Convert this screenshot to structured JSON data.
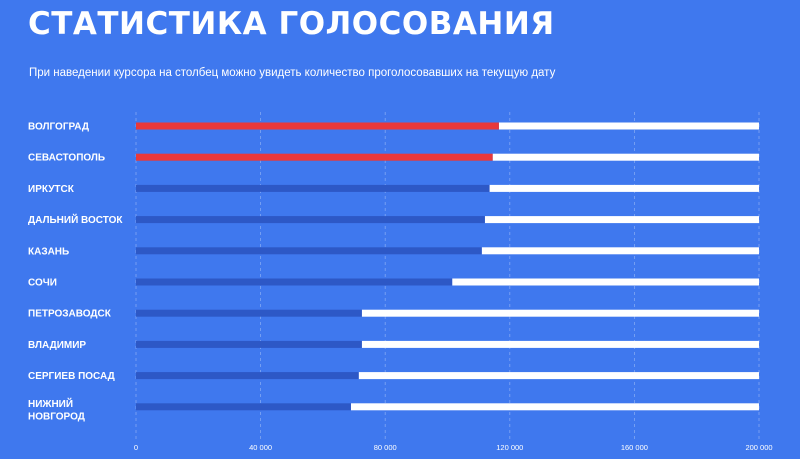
{
  "header": {
    "title": "СТАТИСТИКА ГОЛОСОВАНИЯ",
    "subtitle": "При наведении курсора на столбец можно увидеть количество проголосовавших на текущую дату"
  },
  "colors": {
    "background": "#3f78ee",
    "highlight_bar": "#e8383b",
    "bar": "#2d58c6",
    "remaining": "#ffffff"
  },
  "chart_data": {
    "type": "bar",
    "orientation": "horizontal",
    "title": "",
    "xlabel": "",
    "ylabel": "",
    "xlim": [
      0,
      200000
    ],
    "grid": true,
    "categories": [
      "ВОЛГОГРАД",
      "СЕВАСТОПОЛЬ",
      "ИРКУТСК",
      "ДАЛЬНИЙ ВОСТОК",
      "КАЗАНЬ",
      "СОЧИ",
      "ПЕТРОЗАВОДСК",
      "ВЛАДИМИР",
      "СЕРГИЕВ ПОСАД",
      "НИЖНИЙ НОВГОРОД"
    ],
    "category_lines": [
      [
        "ВОЛГОГРАД"
      ],
      [
        "СЕВАСТОПОЛЬ"
      ],
      [
        "ИРКУТСК"
      ],
      [
        "ДАЛЬНИЙ ВОСТОК"
      ],
      [
        "КАЗАНЬ"
      ],
      [
        "СОЧИ"
      ],
      [
        "ПЕТРОЗАВОДСК"
      ],
      [
        "ВЛАДИМИР"
      ],
      [
        "СЕРГИЕВ ПОСАД"
      ],
      [
        "НИЖНИЙ",
        "НОВГОРОД"
      ]
    ],
    "values": [
      116500,
      114500,
      113500,
      112000,
      111000,
      101500,
      72500,
      72500,
      71500,
      69000
    ],
    "highlighted": [
      true,
      true,
      false,
      false,
      false,
      false,
      false,
      false,
      false,
      false
    ],
    "max": 200000,
    "ticks": [
      0,
      40000,
      80000,
      120000,
      160000,
      200000
    ],
    "tick_labels": [
      "0",
      "40 000",
      "80 000",
      "120 000",
      "160 000",
      "200 000"
    ]
  }
}
